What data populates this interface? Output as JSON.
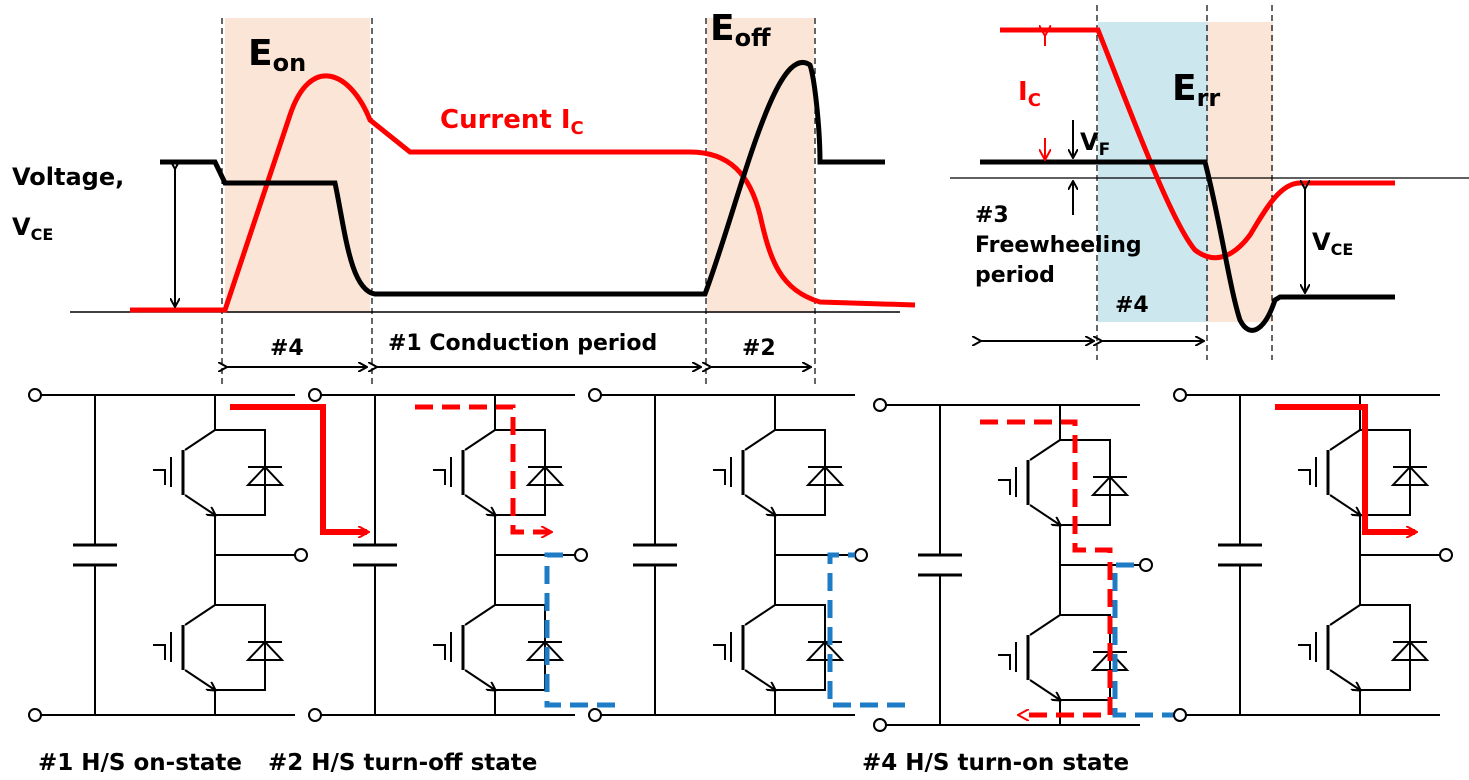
{
  "waveform_left": {
    "energy_on": {
      "main": "E",
      "sub": "on"
    },
    "energy_off": {
      "main": "E",
      "sub": "off"
    },
    "current_label": {
      "main": "Current  I",
      "sub": "C"
    },
    "voltage_label": "Voltage,",
    "vce_label": {
      "main": "V",
      "sub": "CE"
    },
    "period_4": "#4",
    "period_1": "#1 Conduction period",
    "period_2": "#2"
  },
  "waveform_right": {
    "energy_rr": {
      "main": "E",
      "sub": "rr"
    },
    "ic_label": {
      "main": "I",
      "sub": "C"
    },
    "vf_label": {
      "main": "V",
      "sub": "F"
    },
    "freewheel_line1": "#3",
    "freewheel_line2": "Freewheeling",
    "freewheel_line3": "period",
    "period_4": "#4",
    "vce_label": {
      "main": "V",
      "sub": "CE"
    }
  },
  "captions": {
    "c1": "#1 H/S on-state",
    "c2": "#2 H/S turn-off state",
    "c4": "#4 H/S turn-on state"
  },
  "colors": {
    "current": "#ff0000",
    "voltage": "#000000",
    "energy_region": "#fbe5d6",
    "freewheel_region": "#cde7ef",
    "freewheel_current": "#1e7bc6"
  }
}
